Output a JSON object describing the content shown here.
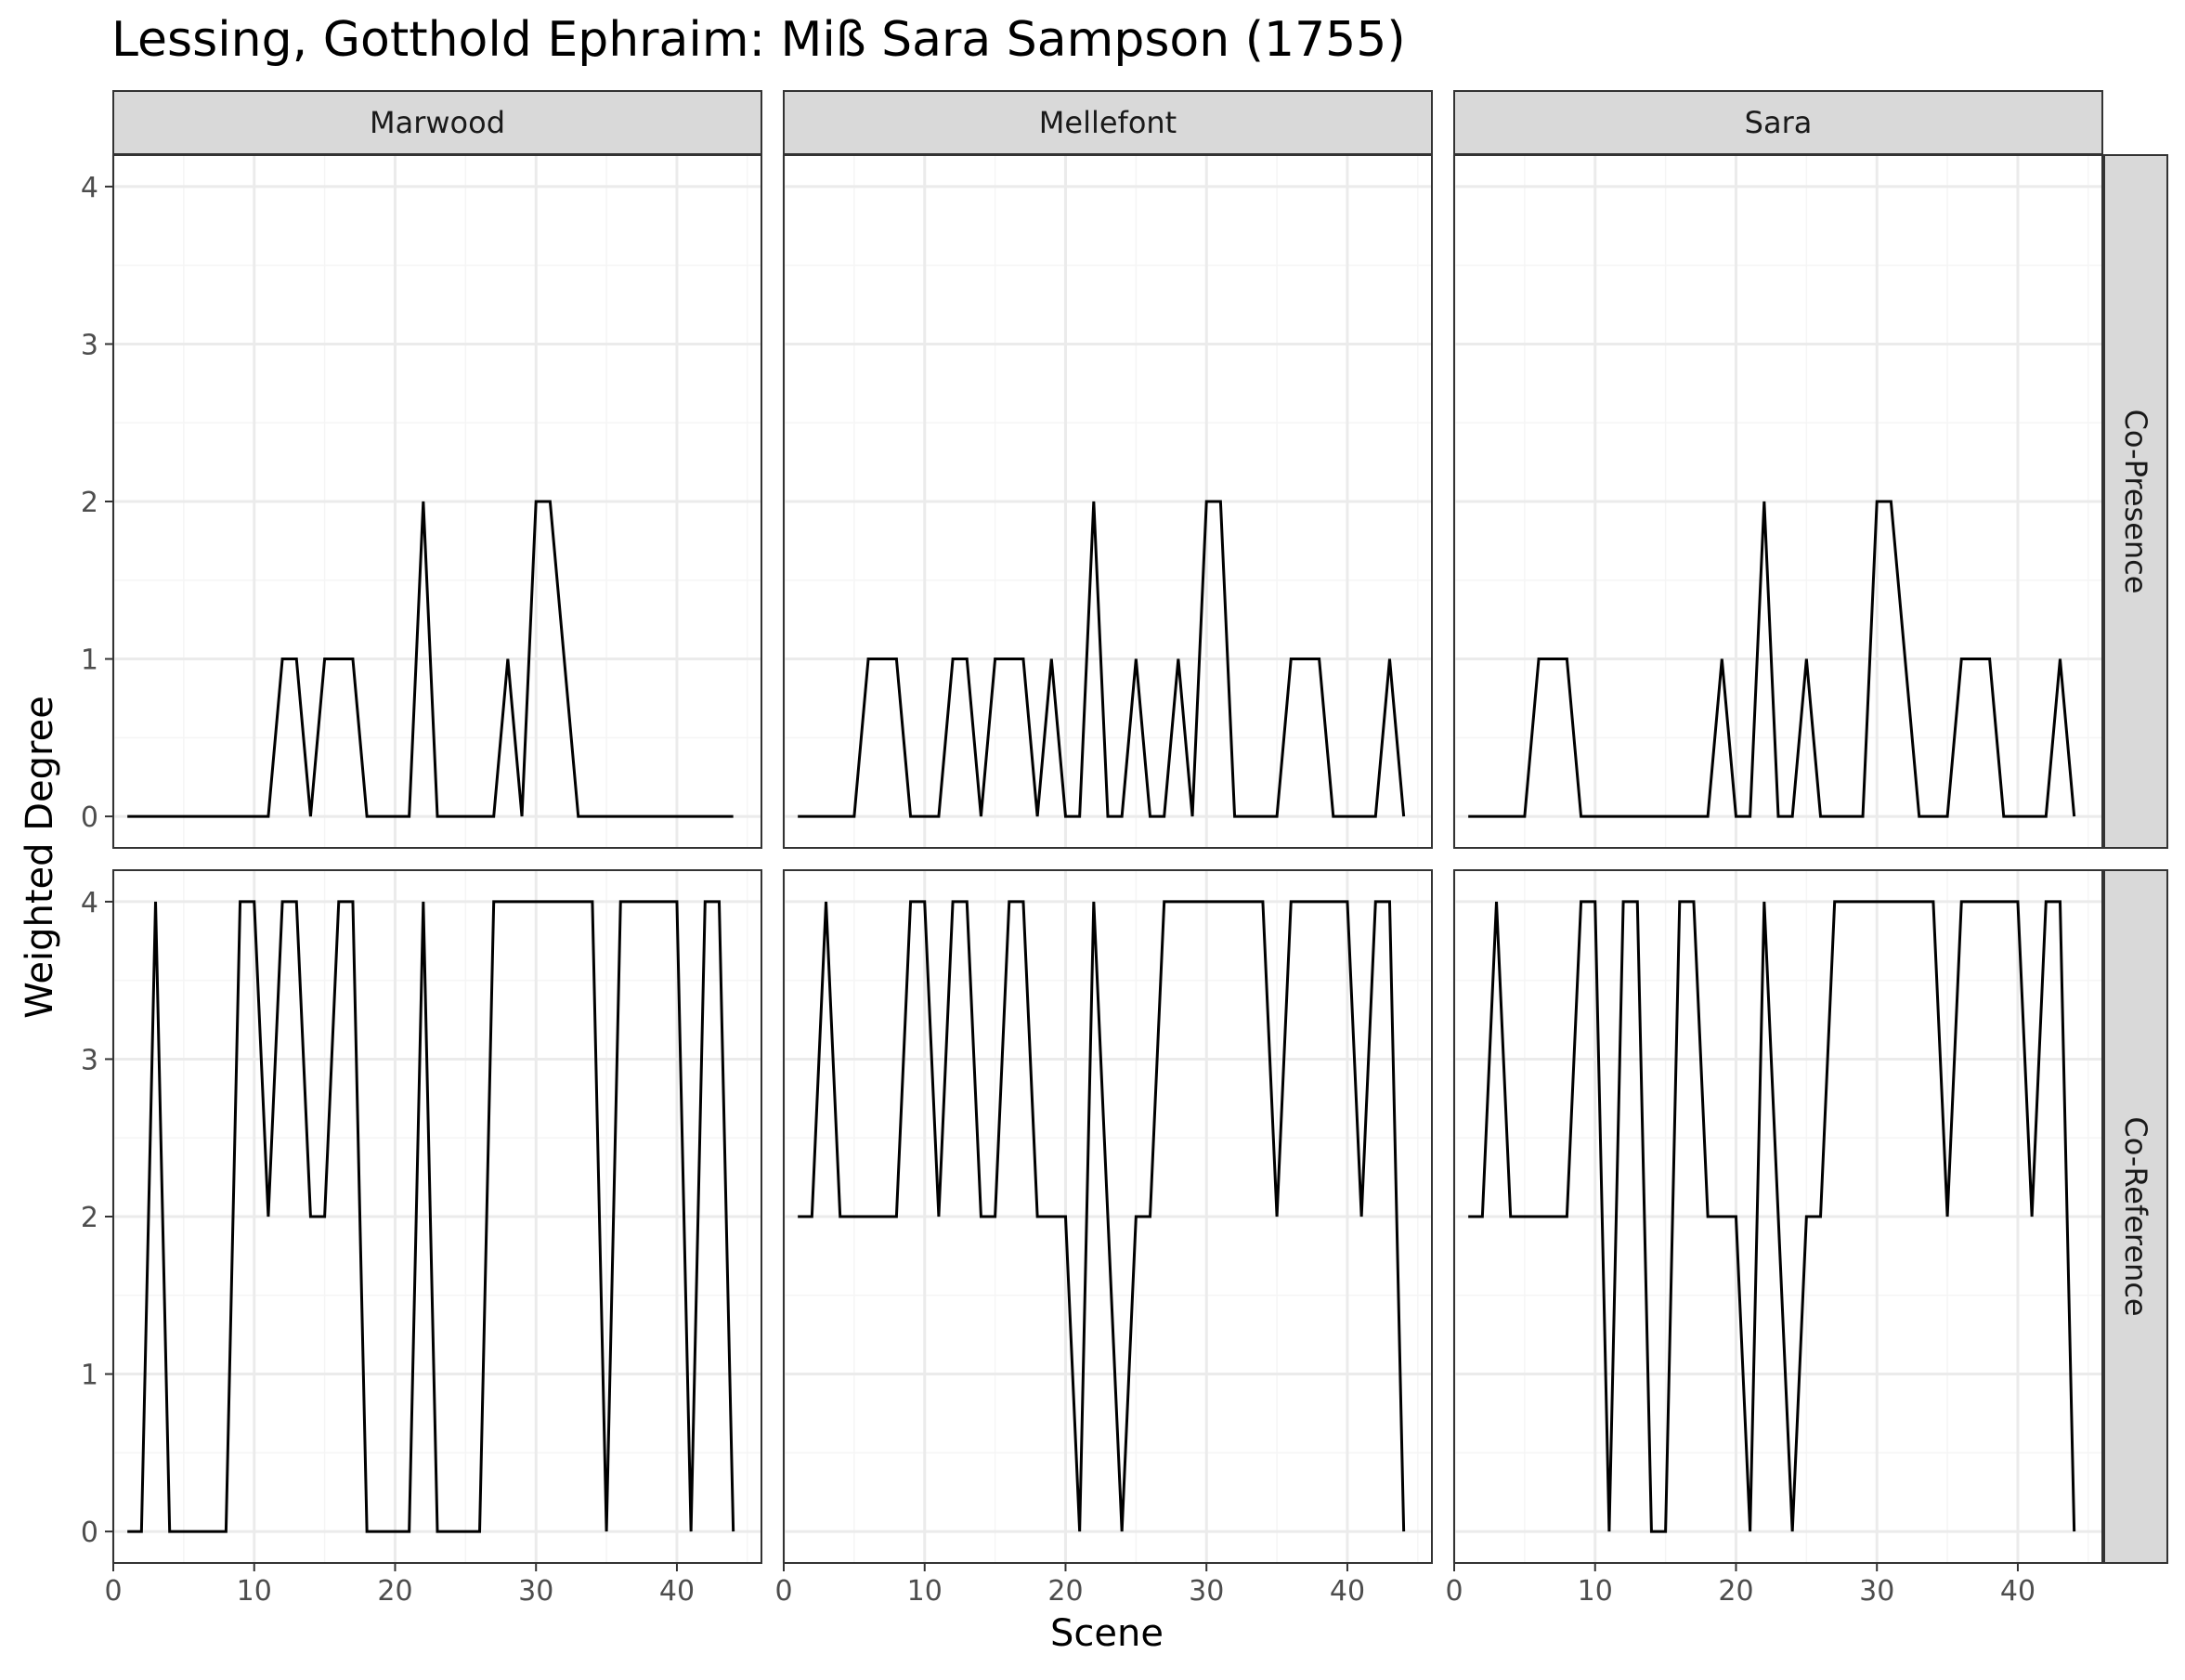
{
  "chart_data": {
    "type": "line",
    "title": "Lessing, Gotthold Ephraim: Miß Sara Sampson (1755)",
    "xlabel": "Scene",
    "ylabel": "Weighted Degree",
    "xlim": [
      0,
      46
    ],
    "ylim": [
      -0.2,
      4.2
    ],
    "x_ticks": [
      0,
      10,
      20,
      30,
      40
    ],
    "y_ticks": [
      0,
      1,
      2,
      3,
      4
    ],
    "grid": true,
    "columns": [
      "Marwood",
      "Mellefont",
      "Sara"
    ],
    "rows": [
      "Co-Presence",
      "Co-Reference"
    ],
    "x": [
      1,
      2,
      3,
      4,
      5,
      6,
      7,
      8,
      9,
      10,
      11,
      12,
      13,
      14,
      15,
      16,
      17,
      18,
      19,
      20,
      21,
      22,
      23,
      24,
      25,
      26,
      27,
      28,
      29,
      30,
      31,
      32,
      33,
      34,
      35,
      36,
      37,
      38,
      39,
      40,
      41,
      42,
      43,
      44
    ],
    "panels": [
      {
        "row": "Co-Presence",
        "column": "Marwood",
        "values": [
          0,
          0,
          0,
          0,
          0,
          0,
          0,
          0,
          0,
          0,
          0,
          1,
          1,
          0,
          1,
          1,
          1,
          0,
          0,
          0,
          0,
          2,
          0,
          0,
          0,
          0,
          0,
          1,
          0,
          2,
          2,
          1,
          0,
          0,
          0,
          0,
          0,
          0,
          0,
          0,
          0,
          0,
          0,
          0
        ]
      },
      {
        "row": "Co-Presence",
        "column": "Mellefont",
        "values": [
          0,
          0,
          0,
          0,
          0,
          1,
          1,
          1,
          0,
          0,
          0,
          1,
          1,
          0,
          1,
          1,
          1,
          0,
          1,
          0,
          0,
          2,
          0,
          0,
          1,
          0,
          0,
          1,
          0,
          2,
          2,
          0,
          0,
          0,
          0,
          1,
          1,
          1,
          0,
          0,
          0,
          0,
          1,
          0
        ]
      },
      {
        "row": "Co-Presence",
        "column": "Sara",
        "values": [
          0,
          0,
          0,
          0,
          0,
          1,
          1,
          1,
          0,
          0,
          0,
          0,
          0,
          0,
          0,
          0,
          0,
          0,
          1,
          0,
          0,
          2,
          0,
          0,
          1,
          0,
          0,
          0,
          0,
          2,
          2,
          1,
          0,
          0,
          0,
          1,
          1,
          1,
          0,
          0,
          0,
          0,
          1,
          0
        ]
      },
      {
        "row": "Co-Reference",
        "column": "Marwood",
        "values": [
          0,
          0,
          4,
          0,
          0,
          0,
          0,
          0,
          4,
          4,
          2,
          4,
          4,
          2,
          2,
          4,
          4,
          0,
          0,
          0,
          0,
          4,
          0,
          0,
          0,
          0,
          4,
          4,
          4,
          4,
          4,
          4,
          4,
          4,
          0,
          4,
          4,
          4,
          4,
          4,
          0,
          4,
          4,
          0
        ]
      },
      {
        "row": "Co-Reference",
        "column": "Mellefont",
        "values": [
          2,
          2,
          4,
          2,
          2,
          2,
          2,
          2,
          4,
          4,
          2,
          4,
          4,
          2,
          2,
          4,
          4,
          2,
          2,
          2,
          0,
          4,
          2,
          0,
          2,
          2,
          4,
          4,
          4,
          4,
          4,
          4,
          4,
          4,
          2,
          4,
          4,
          4,
          4,
          4,
          2,
          4,
          4,
          0
        ]
      },
      {
        "row": "Co-Reference",
        "column": "Sara",
        "values": [
          2,
          2,
          4,
          2,
          2,
          2,
          2,
          2,
          4,
          4,
          0,
          4,
          4,
          0,
          0,
          4,
          4,
          2,
          2,
          2,
          0,
          4,
          2,
          0,
          2,
          2,
          4,
          4,
          4,
          4,
          4,
          4,
          4,
          4,
          2,
          4,
          4,
          4,
          4,
          4,
          2,
          4,
          4,
          0
        ]
      }
    ],
    "colors": {
      "line": "#000000",
      "panel_border": "#333333",
      "grid_major": "#ebebeb",
      "grid_minor": "#f5f5f5",
      "strip_fill": "#d9d9d9",
      "tick_text": "#4d4d4d"
    }
  }
}
